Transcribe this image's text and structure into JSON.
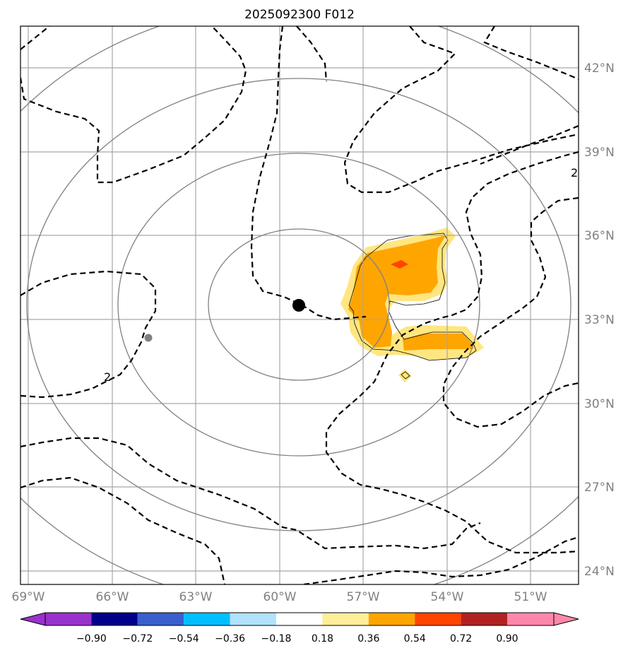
{
  "chart_data": {
    "type": "map-contour",
    "title": "2025092300 F012",
    "lon_ticks": [
      "69°W",
      "66°W",
      "63°W",
      "60°W",
      "57°W",
      "54°W",
      "51°W"
    ],
    "lat_ticks": [
      "42°N",
      "39°N",
      "36°N",
      "33°N",
      "30°N",
      "27°N",
      "24°N"
    ],
    "lon_values": [
      -69,
      -66,
      -63,
      -60,
      -57,
      -54,
      -51
    ],
    "lat_values": [
      42,
      39,
      36,
      33,
      30,
      27,
      24
    ],
    "extent": {
      "lon": [
        -69.3,
        -49.2
      ],
      "lat": [
        43.5,
        23.5
      ]
    },
    "grid": true,
    "contour_labels": [
      "2",
      "2"
    ],
    "center_marker": {
      "lon": -59.3,
      "lat": 33.5
    },
    "secondary_marker": {
      "lon": -64.6,
      "lat": 32.4
    },
    "range_rings_count": 4,
    "colorbar": {
      "ticks": [
        "−0.90",
        "−0.72",
        "−0.54",
        "−0.36",
        "−0.18",
        "0.18",
        "0.36",
        "0.54",
        "0.72",
        "0.90"
      ],
      "colors": [
        "#9932cc",
        "#00008b",
        "#3a5fcd",
        "#00bfff",
        "#b0e2ff",
        "#ffffff",
        "#ffee99",
        "#ffa500",
        "#ff4500",
        "#b22222",
        "#ff88aa"
      ]
    },
    "shading": {
      "light_color": "#ffe680",
      "orange_color": "#ffa500",
      "red_color": "#ff4500"
    }
  }
}
